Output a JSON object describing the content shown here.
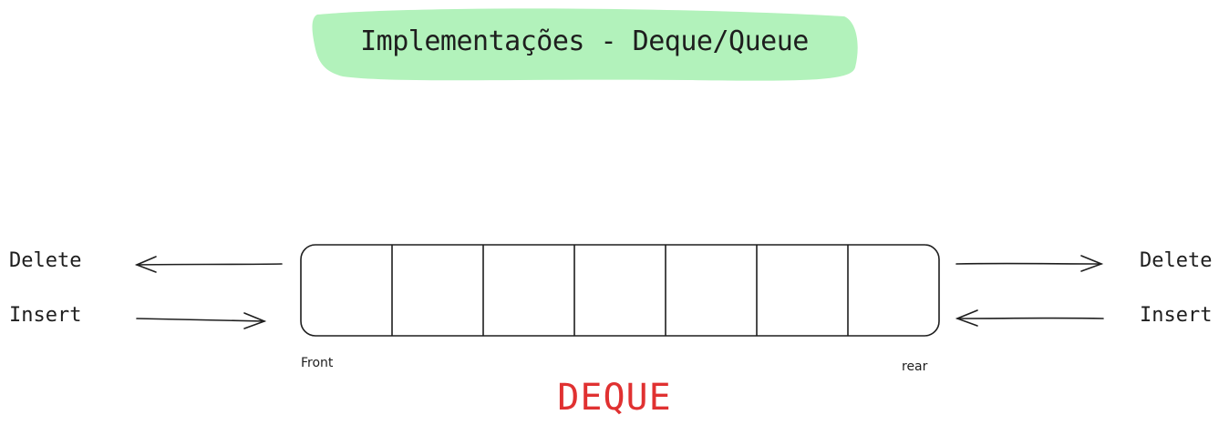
{
  "title": "Implementações - Deque/Queue",
  "caption": "DEQUE",
  "left_ops": {
    "delete_label": "Delete",
    "insert_label": "Insert"
  },
  "right_ops": {
    "delete_label": "Delete",
    "insert_label": "Insert"
  },
  "ends": {
    "front_label": "Front",
    "rear_label": "rear"
  },
  "deque": {
    "cell_count": 7
  },
  "colors": {
    "title_background": "#b2f2bb",
    "caption": "#e03131",
    "stroke": "#1e1e1e"
  }
}
